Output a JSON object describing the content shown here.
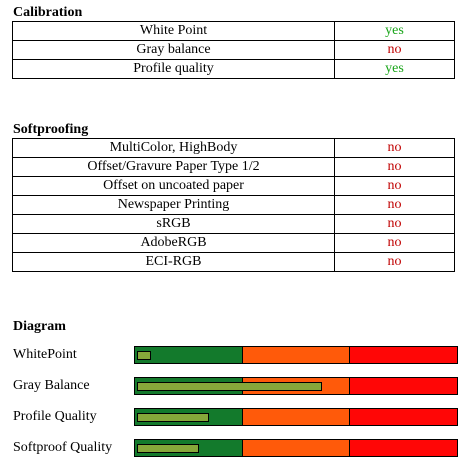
{
  "calibration": {
    "heading": "Calibration",
    "rows": [
      {
        "label": "White Point",
        "value": "yes",
        "status": "yes"
      },
      {
        "label": "Gray balance",
        "value": "no",
        "status": "no"
      },
      {
        "label": "Profile quality",
        "value": "yes",
        "status": "yes"
      }
    ]
  },
  "softproofing": {
    "heading": "Softproofing",
    "rows": [
      {
        "label": "MultiColor, HighBody",
        "value": "no",
        "status": "no"
      },
      {
        "label": "Offset/Gravure Paper Type 1/2",
        "value": "no",
        "status": "no"
      },
      {
        "label": "Offset on uncoated paper",
        "value": "no",
        "status": "no"
      },
      {
        "label": "Newspaper Printing",
        "value": "no",
        "status": "no"
      },
      {
        "label": "sRGB",
        "value": "no",
        "status": "no"
      },
      {
        "label": "AdobeRGB",
        "value": "no",
        "status": "no"
      },
      {
        "label": "ECI-RGB",
        "value": "no",
        "status": "no"
      }
    ]
  },
  "diagram": {
    "heading": "Diagram",
    "rows": [
      {
        "label": "WhitePoint",
        "level": 0.05
      },
      {
        "label": "Gray Balance",
        "level": 0.58
      },
      {
        "label": "Profile Quality",
        "level": 0.23
      },
      {
        "label": "Softproof Quality",
        "level": 0.2
      }
    ]
  },
  "colors": {
    "yes": "#1aa51a",
    "no": "#c00000",
    "bar_green": "#137a2c",
    "bar_orange": "#ff5a0a",
    "bar_red": "#ff0606",
    "bar_fill": "#86a83a"
  }
}
